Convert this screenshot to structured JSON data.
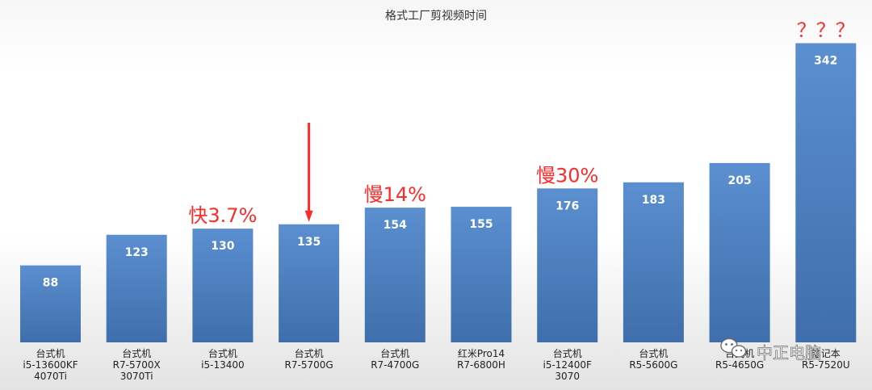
{
  "chart_data": {
    "type": "bar",
    "title": "格式工厂剪视频时间",
    "categories": [
      [
        "台式机",
        "i5-13600KF",
        "4070Ti"
      ],
      [
        "台式机",
        "R7-5700X",
        "3070Ti"
      ],
      [
        "台式机",
        "i5-13400"
      ],
      [
        "台式机",
        "R7-5700G"
      ],
      [
        "台式机",
        "R7-4700G"
      ],
      [
        "红米Pro14",
        "R7-6800H"
      ],
      [
        "台式机",
        "i5-12400F",
        "3070"
      ],
      [
        "台式机",
        "R5-5600G"
      ],
      [
        "台式机",
        "R5-4650G"
      ],
      [
        "笔记本",
        "R5-7520U"
      ]
    ],
    "values": [
      88,
      123,
      130,
      135,
      154,
      155,
      176,
      183,
      205,
      342
    ],
    "ylim": [
      0,
      360
    ],
    "grid": false,
    "bar_color": "#4f81bd",
    "annotations": [
      {
        "bar_index": 2,
        "text": "快3.7%"
      },
      {
        "bar_index": 4,
        "text": "慢14%"
      },
      {
        "bar_index": 6,
        "text": "慢30%"
      },
      {
        "bar_index": 9,
        "text": "？？？"
      }
    ],
    "arrow_bar_index": 3,
    "annotation_color": "#ff2a2a"
  },
  "watermark": {
    "text": "中正电脑",
    "icon": "wechat-icon"
  }
}
